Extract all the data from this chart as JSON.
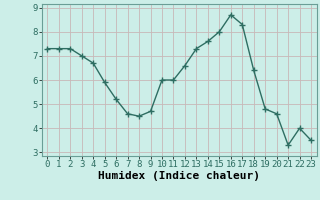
{
  "x": [
    0,
    1,
    2,
    3,
    4,
    5,
    6,
    7,
    8,
    9,
    10,
    11,
    12,
    13,
    14,
    15,
    16,
    17,
    18,
    19,
    20,
    21,
    22,
    23
  ],
  "y": [
    7.3,
    7.3,
    7.3,
    7.0,
    6.7,
    5.9,
    5.2,
    4.6,
    4.5,
    4.7,
    6.0,
    6.0,
    6.6,
    7.3,
    7.6,
    8.0,
    8.7,
    8.3,
    6.4,
    4.8,
    4.6,
    3.3,
    4.0,
    3.5
  ],
  "line_color": "#2e6e62",
  "marker": "+",
  "marker_size": 4,
  "bg_color": "#cceee8",
  "grid_color": "#c8b8b8",
  "xlabel": "Humidex (Indice chaleur)",
  "xlabel_fontsize": 8,
  "ylim": [
    3,
    9
  ],
  "xlim": [
    -0.5,
    23.5
  ],
  "yticks": [
    3,
    4,
    5,
    6,
    7,
    8,
    9
  ],
  "xticks": [
    0,
    1,
    2,
    3,
    4,
    5,
    6,
    7,
    8,
    9,
    10,
    11,
    12,
    13,
    14,
    15,
    16,
    17,
    18,
    19,
    20,
    21,
    22,
    23
  ],
  "tick_fontsize": 6.5,
  "line_width": 1.0,
  "spine_color": "#6a9e96"
}
